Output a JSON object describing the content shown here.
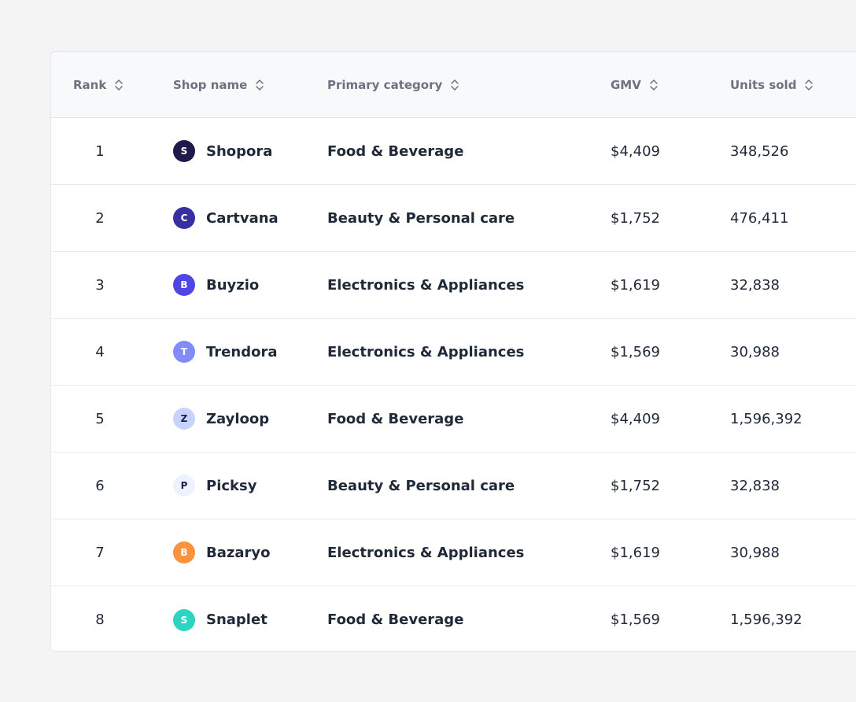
{
  "table": {
    "columns": [
      {
        "label": "Rank",
        "icon": "sort-icon"
      },
      {
        "label": "Shop name",
        "icon": "sort-icon"
      },
      {
        "label": "Primary category",
        "icon": "sort-icon"
      },
      {
        "label": "GMV",
        "icon": "sort-icon"
      },
      {
        "label": "Units sold",
        "icon": "sort-icon"
      }
    ],
    "rows": [
      {
        "rank": "1",
        "initial": "S",
        "avatar_bg": "#1e1b4b",
        "avatar_fg": "#ffffff",
        "shop": "Shopora",
        "category": "Food & Beverage",
        "gmv": "$4,409",
        "units": "348,526"
      },
      {
        "rank": "2",
        "initial": "C",
        "avatar_bg": "#3730a3",
        "avatar_fg": "#ffffff",
        "shop": "Cartvana",
        "category": "Beauty & Personal care",
        "gmv": "$1,752",
        "units": "476,411"
      },
      {
        "rank": "3",
        "initial": "B",
        "avatar_bg": "#4f46e5",
        "avatar_fg": "#ffffff",
        "shop": "Buyzio",
        "category": "Electronics & Appliances",
        "gmv": "$1,619",
        "units": "32,838"
      },
      {
        "rank": "4",
        "initial": "T",
        "avatar_bg": "#818cf8",
        "avatar_fg": "#ffffff",
        "shop": "Trendora",
        "category": "Electronics & Appliances",
        "gmv": "$1,569",
        "units": "30,988"
      },
      {
        "rank": "5",
        "initial": "Z",
        "avatar_bg": "#c7d2fe",
        "avatar_fg": "#1e1b4b",
        "shop": "Zayloop",
        "category": "Food & Beverage",
        "gmv": "$4,409",
        "units": "1,596,392"
      },
      {
        "rank": "6",
        "initial": "P",
        "avatar_bg": "#eef2ff",
        "avatar_fg": "#1e1b4b",
        "shop": "Picksy",
        "category": "Beauty & Personal care",
        "gmv": "$1,752",
        "units": "32,838"
      },
      {
        "rank": "7",
        "initial": "B",
        "avatar_bg": "#fb923c",
        "avatar_fg": "#ffffff",
        "shop": "Bazaryo",
        "category": "Electronics & Appliances",
        "gmv": "$1,619",
        "units": "30,988"
      },
      {
        "rank": "8",
        "initial": "S",
        "avatar_bg": "#2dd4bf",
        "avatar_fg": "#ffffff",
        "shop": "Snaplet",
        "category": "Food & Beverage",
        "gmv": "$1,569",
        "units": "1,596,392"
      }
    ]
  }
}
